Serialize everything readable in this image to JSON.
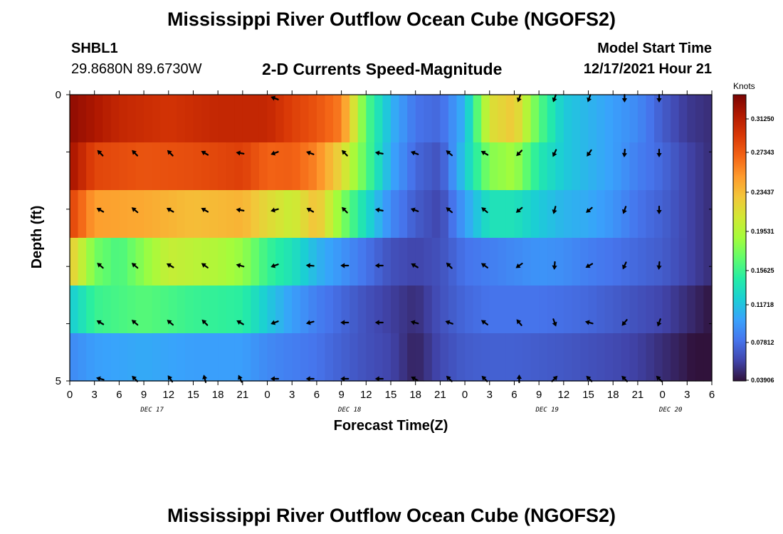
{
  "header": {
    "title": "Mississippi River Outflow Ocean Cube (NGOFS2)",
    "station": "SHBL1",
    "coords": "29.8680N  89.6730W",
    "subtitle": "2-D Currents Speed-Magnitude",
    "model_start_label": "Model Start Time",
    "model_start_date": "12/17/2021 Hour 21"
  },
  "footer": {
    "title": "Mississippi River Outflow Ocean Cube (NGOFS2)"
  },
  "chart_data": {
    "type": "heatmap",
    "xlabel": "Forecast Time(Z)",
    "ylabel": "Depth (ft)",
    "x_ticks": [
      "0",
      "3",
      "6",
      "9",
      "12",
      "15",
      "18",
      "21",
      "0",
      "3",
      "6",
      "9",
      "12",
      "15",
      "18",
      "21",
      "0",
      "3",
      "6",
      "9",
      "12",
      "15",
      "18",
      "21",
      "0",
      "3",
      "6"
    ],
    "y_ticks": [
      "0",
      "5"
    ],
    "day_labels": [
      {
        "label": "DEC 17",
        "hour": 10
      },
      {
        "label": "DEC 18",
        "hour": 34
      },
      {
        "label": "DEC 19",
        "hour": 58
      },
      {
        "label": "DEC 20",
        "hour": 73
      }
    ],
    "colorbar": {
      "unit": "Knots",
      "labels": [
        "0.31250",
        "0.27343",
        "0.23437",
        "0.19531",
        "0.15625",
        "0.11718",
        "0.07812",
        "0.03906"
      ],
      "range": [
        0.039,
        0.33
      ],
      "colors": [
        "#30123b",
        "#4145ab",
        "#4675ed",
        "#39a2fc",
        "#1bcfd4",
        "#24eca6",
        "#61fc6c",
        "#a4fc3b",
        "#d1e834",
        "#f3c63a",
        "#fe9b2d",
        "#f36315",
        "#d93806",
        "#b11901",
        "#7a0403"
      ]
    },
    "speed_rows": [
      {
        "row": 1,
        "points": [
          [
            0,
            0.322
          ],
          [
            6,
            0.3
          ],
          [
            12,
            0.292
          ],
          [
            18,
            0.3
          ],
          [
            24,
            0.3
          ],
          [
            27,
            0.285
          ],
          [
            30,
            0.275
          ],
          [
            33,
            0.258
          ],
          [
            36,
            0.16
          ],
          [
            39,
            0.11
          ],
          [
            42,
            0.08
          ],
          [
            45,
            0.075
          ],
          [
            48,
            0.11
          ],
          [
            51,
            0.21
          ],
          [
            54,
            0.225
          ],
          [
            57,
            0.16
          ],
          [
            60,
            0.12
          ],
          [
            63,
            0.11
          ],
          [
            66,
            0.1
          ],
          [
            69,
            0.09
          ],
          [
            72,
            0.07
          ],
          [
            75,
            0.055
          ],
          [
            78,
            0.05
          ]
        ]
      },
      {
        "row": 2,
        "points": [
          [
            0,
            0.315
          ],
          [
            3,
            0.282
          ],
          [
            9,
            0.275
          ],
          [
            15,
            0.278
          ],
          [
            21,
            0.285
          ],
          [
            24,
            0.268
          ],
          [
            27,
            0.27
          ],
          [
            30,
            0.255
          ],
          [
            33,
            0.215
          ],
          [
            36,
            0.16
          ],
          [
            39,
            0.105
          ],
          [
            42,
            0.075
          ],
          [
            45,
            0.065
          ],
          [
            48,
            0.12
          ],
          [
            51,
            0.175
          ],
          [
            54,
            0.185
          ],
          [
            57,
            0.14
          ],
          [
            60,
            0.12
          ],
          [
            63,
            0.11
          ],
          [
            66,
            0.1
          ],
          [
            69,
            0.085
          ],
          [
            72,
            0.075
          ],
          [
            75,
            0.06
          ],
          [
            78,
            0.05
          ]
        ]
      },
      {
        "row": 3,
        "points": [
          [
            0,
            0.285
          ],
          [
            3,
            0.245
          ],
          [
            9,
            0.24
          ],
          [
            15,
            0.23
          ],
          [
            21,
            0.235
          ],
          [
            24,
            0.215
          ],
          [
            27,
            0.2
          ],
          [
            30,
            0.23
          ],
          [
            33,
            0.175
          ],
          [
            36,
            0.13
          ],
          [
            39,
            0.09
          ],
          [
            42,
            0.07
          ],
          [
            45,
            0.06
          ],
          [
            48,
            0.1
          ],
          [
            51,
            0.135
          ],
          [
            54,
            0.135
          ],
          [
            57,
            0.12
          ],
          [
            60,
            0.11
          ],
          [
            63,
            0.105
          ],
          [
            66,
            0.095
          ],
          [
            69,
            0.08
          ],
          [
            72,
            0.072
          ],
          [
            75,
            0.06
          ],
          [
            78,
            0.05
          ]
        ]
      },
      {
        "row": 4,
        "points": [
          [
            0,
            0.225
          ],
          [
            3,
            0.17
          ],
          [
            6,
            0.155
          ],
          [
            12,
            0.2
          ],
          [
            18,
            0.19
          ],
          [
            21,
            0.18
          ],
          [
            24,
            0.15
          ],
          [
            27,
            0.135
          ],
          [
            30,
            0.11
          ],
          [
            33,
            0.095
          ],
          [
            36,
            0.08
          ],
          [
            39,
            0.065
          ],
          [
            42,
            0.06
          ],
          [
            45,
            0.065
          ],
          [
            48,
            0.08
          ],
          [
            51,
            0.085
          ],
          [
            54,
            0.09
          ],
          [
            57,
            0.095
          ],
          [
            60,
            0.092
          ],
          [
            63,
            0.085
          ],
          [
            66,
            0.08
          ],
          [
            69,
            0.075
          ],
          [
            72,
            0.07
          ],
          [
            75,
            0.06
          ],
          [
            78,
            0.05
          ]
        ]
      },
      {
        "row": 5,
        "points": [
          [
            0,
            0.12
          ],
          [
            3,
            0.15
          ],
          [
            9,
            0.16
          ],
          [
            15,
            0.15
          ],
          [
            21,
            0.145
          ],
          [
            24,
            0.12
          ],
          [
            27,
            0.1
          ],
          [
            30,
            0.085
          ],
          [
            33,
            0.075
          ],
          [
            36,
            0.065
          ],
          [
            42,
            0.05
          ],
          [
            45,
            0.065
          ],
          [
            48,
            0.075
          ],
          [
            51,
            0.08
          ],
          [
            54,
            0.08
          ],
          [
            57,
            0.08
          ],
          [
            60,
            0.078
          ],
          [
            63,
            0.075
          ],
          [
            66,
            0.07
          ],
          [
            69,
            0.065
          ],
          [
            72,
            0.06
          ],
          [
            75,
            0.05
          ],
          [
            78,
            0.04
          ]
        ]
      },
      {
        "row": 6,
        "points": [
          [
            0,
            0.09
          ],
          [
            3,
            0.1
          ],
          [
            9,
            0.105
          ],
          [
            15,
            0.1
          ],
          [
            21,
            0.1
          ],
          [
            24,
            0.09
          ],
          [
            27,
            0.085
          ],
          [
            30,
            0.08
          ],
          [
            33,
            0.072
          ],
          [
            36,
            0.065
          ],
          [
            39,
            0.06
          ],
          [
            42,
            0.045
          ],
          [
            45,
            0.062
          ],
          [
            48,
            0.07
          ],
          [
            51,
            0.072
          ],
          [
            54,
            0.072
          ],
          [
            57,
            0.07
          ],
          [
            60,
            0.068
          ],
          [
            63,
            0.065
          ],
          [
            66,
            0.062
          ],
          [
            69,
            0.058
          ],
          [
            72,
            0.05
          ],
          [
            75,
            0.042
          ],
          [
            78,
            0.03
          ]
        ]
      }
    ],
    "arrow_hours": [
      3.7,
      7.9,
      12.2,
      16.4,
      20.7,
      24.9,
      29.2,
      33.4,
      37.6,
      41.9,
      46.1,
      50.4,
      54.6,
      58.9,
      63.1,
      67.4,
      71.6
    ],
    "arrow_rows": [
      {
        "row": 1,
        "angles": [
          null,
          null,
          null,
          null,
          null,
          290,
          null,
          null,
          null,
          null,
          null,
          null,
          200,
          200,
          200,
          180,
          180
        ]
      },
      {
        "row": 2,
        "angles": [
          315,
          315,
          315,
          300,
          280,
          250,
          290,
          315,
          280,
          290,
          310,
          300,
          225,
          205,
          215,
          185,
          180
        ]
      },
      {
        "row": 3,
        "angles": [
          300,
          310,
          300,
          300,
          280,
          255,
          300,
          315,
          280,
          290,
          310,
          310,
          230,
          195,
          230,
          200,
          180
        ]
      },
      {
        "row": 4,
        "angles": [
          310,
          310,
          300,
          305,
          285,
          250,
          275,
          270,
          270,
          300,
          315,
          305,
          235,
          185,
          240,
          205,
          185
        ]
      },
      {
        "row": 5,
        "angles": [
          300,
          310,
          310,
          315,
          300,
          250,
          255,
          270,
          270,
          285,
          290,
          305,
          320,
          160,
          285,
          220,
          200
        ]
      },
      {
        "row": 6,
        "angles": [
          285,
          315,
          325,
          345,
          335,
          270,
          270,
          270,
          270,
          300,
          315,
          315,
          0,
          45,
          315,
          315,
          315
        ]
      }
    ]
  }
}
